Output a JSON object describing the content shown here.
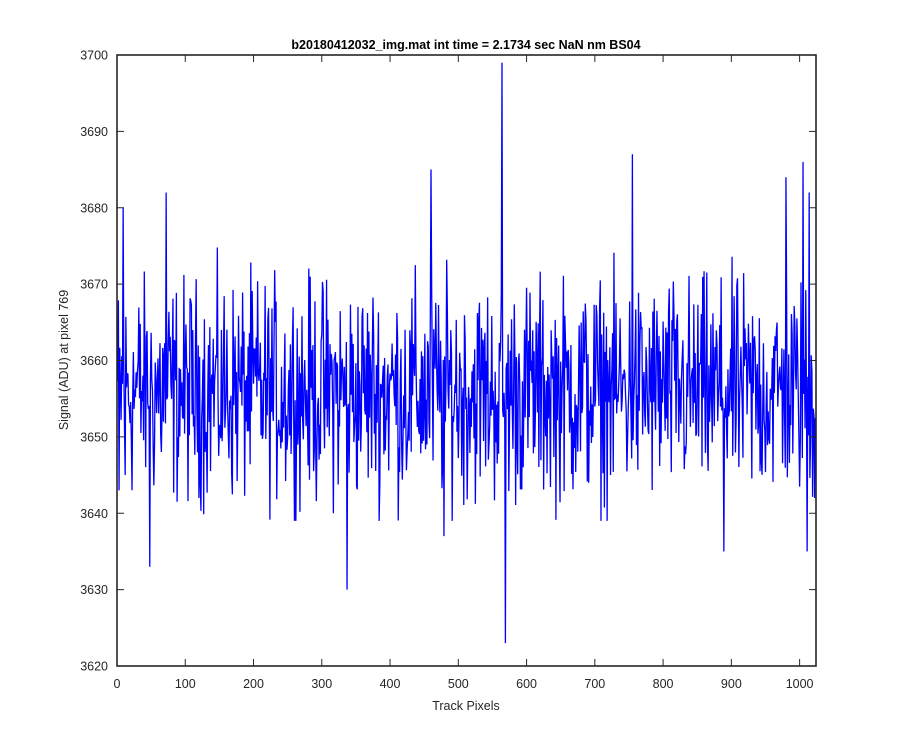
{
  "chart_data": {
    "type": "line",
    "title": "b20180412032_img.mat int time = 2.1734 sec  NaN nm BS04",
    "xlabel": "Track Pixels",
    "ylabel": "Signal (ADU) at pixel 769",
    "xlim": [
      0,
      1024
    ],
    "ylim": [
      3620,
      3700
    ],
    "xticks": [
      0,
      100,
      200,
      300,
      400,
      500,
      600,
      700,
      800,
      900,
      1000
    ],
    "yticks": [
      3620,
      3630,
      3640,
      3650,
      3660,
      3670,
      3680,
      3690,
      3700
    ],
    "grid": false,
    "legend": "none",
    "color": "#0000ff",
    "n_points": 1024,
    "baseline_mean": 3656,
    "noise_amplitude": 7,
    "peaks": [
      {
        "x": 2,
        "y": 3643
      },
      {
        "x": 8,
        "y": 3680
      },
      {
        "x": 11,
        "y": 3645
      },
      {
        "x": 47,
        "y": 3633
      },
      {
        "x": 71,
        "y": 3682
      },
      {
        "x": 336,
        "y": 3630
      },
      {
        "x": 459,
        "y": 3685
      },
      {
        "x": 478,
        "y": 3637
      },
      {
        "x": 563,
        "y": 3699
      },
      {
        "x": 568,
        "y": 3623
      },
      {
        "x": 754,
        "y": 3687
      },
      {
        "x": 888,
        "y": 3635
      },
      {
        "x": 979,
        "y": 3684
      },
      {
        "x": 1004,
        "y": 3686
      },
      {
        "x": 1010,
        "y": 3635
      },
      {
        "x": 1013,
        "y": 3682
      },
      {
        "x": 1021,
        "y": 3642
      }
    ]
  }
}
